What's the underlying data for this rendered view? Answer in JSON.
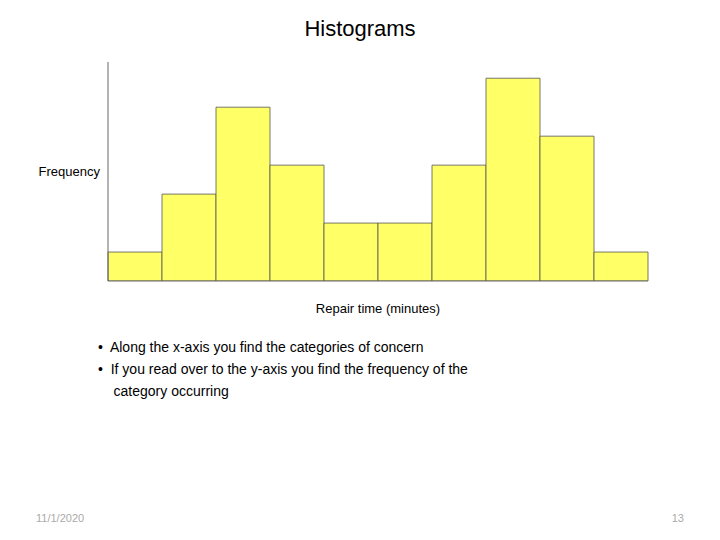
{
  "chart_data": {
    "type": "histogram",
    "title": "Histograms",
    "x_label": "Repair time (minutes)",
    "y_label": "Frequency",
    "values": [
      1,
      3,
      6,
      4,
      2,
      2,
      4,
      7,
      5,
      1
    ],
    "color": "#FFFF66",
    "ylim": [
      0,
      7.56
    ],
    "yticks": [],
    "tick_labels": false,
    "grid": false,
    "annotations": [
      "•  Along the x-axis you find the categories of concern",
      "•  If you read over to the y-axis you find the frequency of the",
      "    category occurring",
      "11/1/2020",
      "13"
    ]
  }
}
